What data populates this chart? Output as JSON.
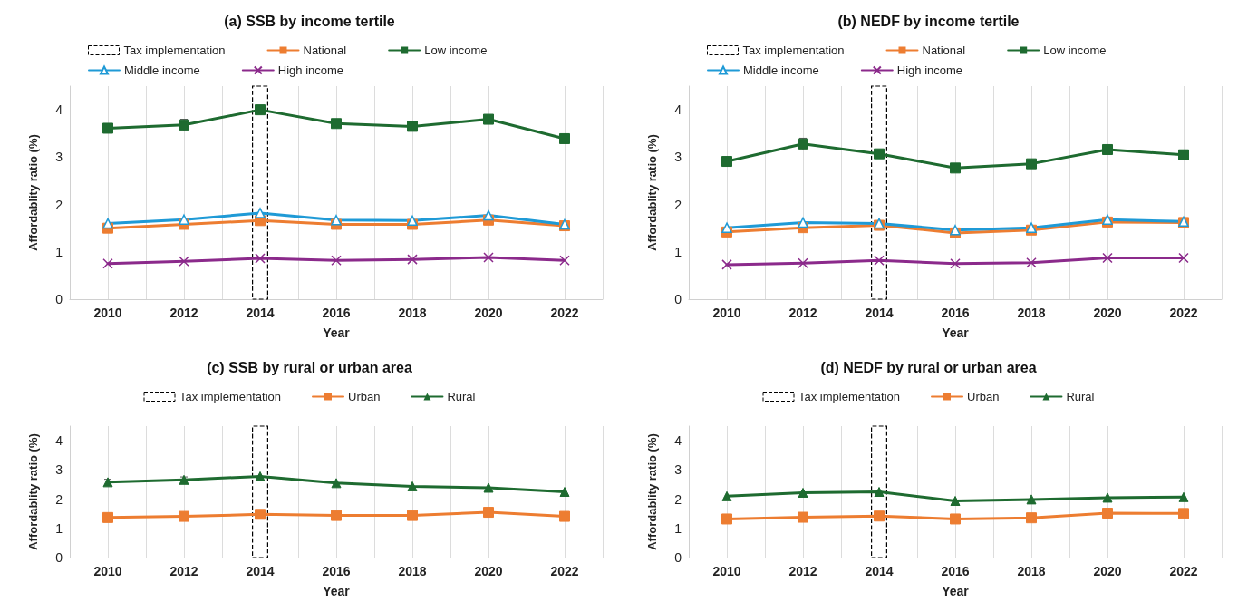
{
  "chart_data": [
    {
      "type": "line",
      "title": "(a) SSB by income tertile",
      "xlabel": "Year",
      "ylabel": "Affordablity ratio (%)",
      "x": [
        2010,
        2012,
        2014,
        2016,
        2018,
        2020,
        2022
      ],
      "series": [
        {
          "name": "National",
          "color": "#ed7d31",
          "marker": "square",
          "values": [
            1.5,
            1.58,
            1.66,
            1.58,
            1.58,
            1.67,
            1.55
          ]
        },
        {
          "name": "Low income",
          "color": "#1e6b30",
          "marker": "square",
          "values": [
            3.61,
            3.68,
            4.0,
            3.71,
            3.65,
            3.8,
            3.39
          ],
          "errors": [
            null,
            0.12,
            null,
            null,
            null,
            null,
            null
          ]
        },
        {
          "name": "Middle income",
          "color": "#1f9ad6",
          "marker": "triangle",
          "values": [
            1.6,
            1.68,
            1.82,
            1.67,
            1.66,
            1.77,
            1.58
          ]
        },
        {
          "name": "High income",
          "color": "#8b2a8b",
          "marker": "cross",
          "values": [
            0.75,
            0.8,
            0.86,
            0.82,
            0.84,
            0.88,
            0.82
          ]
        }
      ],
      "xlim": [
        2009,
        2023
      ],
      "xticks": [
        {
          "value": 2009,
          "label": null
        },
        2010,
        {
          "value": 2011,
          "label": null
        },
        2012,
        {
          "value": 2013,
          "label": null
        },
        2014,
        {
          "value": 2015,
          "label": null
        },
        2016,
        {
          "value": 2017,
          "label": null
        },
        2018,
        {
          "value": 2019,
          "label": null
        },
        2020,
        {
          "value": 2021,
          "label": null
        },
        2022,
        {
          "value": 2023,
          "label": null
        }
      ],
      "ylim": [
        0,
        4.5
      ],
      "yticks": [
        0,
        1,
        2,
        3,
        4
      ],
      "grid": "x",
      "legend": "top",
      "bands": [
        {
          "axis": "x",
          "from": 2013.8,
          "to": 2014.2,
          "label": "Tax implementation",
          "color": "#ffffff"
        }
      ]
    },
    {
      "type": "line",
      "title": "(b) NEDF by income tertile",
      "xlabel": "Year",
      "ylabel": "Affordablity ratio (%)",
      "x": [
        2010,
        2012,
        2014,
        2016,
        2018,
        2020,
        2022
      ],
      "series": [
        {
          "name": "National",
          "color": "#ed7d31",
          "marker": "square",
          "values": [
            1.42,
            1.51,
            1.56,
            1.4,
            1.46,
            1.63,
            1.62
          ]
        },
        {
          "name": "Low income",
          "color": "#1e6b30",
          "marker": "square",
          "values": [
            2.91,
            3.28,
            3.07,
            2.77,
            2.86,
            3.16,
            3.05
          ],
          "errors": [
            null,
            0.12,
            null,
            null,
            null,
            null,
            null
          ]
        },
        {
          "name": "Middle income",
          "color": "#1f9ad6",
          "marker": "triangle",
          "values": [
            1.51,
            1.62,
            1.6,
            1.46,
            1.51,
            1.68,
            1.64
          ]
        },
        {
          "name": "High income",
          "color": "#8b2a8b",
          "marker": "cross",
          "values": [
            0.73,
            0.76,
            0.82,
            0.75,
            0.77,
            0.87,
            0.87
          ]
        }
      ],
      "xlim": [
        2009,
        2023
      ],
      "xticks": [
        {
          "value": 2009,
          "label": null
        },
        2010,
        {
          "value": 2011,
          "label": null
        },
        2012,
        {
          "value": 2013,
          "label": null
        },
        2014,
        {
          "value": 2015,
          "label": null
        },
        2016,
        {
          "value": 2017,
          "label": null
        },
        2018,
        {
          "value": 2019,
          "label": null
        },
        2020,
        {
          "value": 2021,
          "label": null
        },
        2022,
        {
          "value": 2023,
          "label": null
        }
      ],
      "ylim": [
        0,
        4.5
      ],
      "yticks": [
        0,
        1,
        2,
        3,
        4
      ],
      "grid": "x",
      "legend": "top",
      "bands": [
        {
          "axis": "x",
          "from": 2013.8,
          "to": 2014.2,
          "label": "Tax implementation",
          "color": "#ffffff"
        }
      ]
    },
    {
      "type": "line",
      "title": "(c) SSB by rural or urban area",
      "xlabel": "Year",
      "ylabel": "Affordablity ratio (%)",
      "x": [
        2010,
        2012,
        2014,
        2016,
        2018,
        2020,
        2022
      ],
      "series": [
        {
          "name": "Urban",
          "color": "#ed7d31",
          "marker": "square",
          "values": [
            1.37,
            1.41,
            1.48,
            1.44,
            1.44,
            1.55,
            1.41
          ]
        },
        {
          "name": "Rural",
          "color": "#1e6b30",
          "marker": "triangle",
          "values": [
            2.58,
            2.66,
            2.78,
            2.55,
            2.44,
            2.39,
            2.25
          ],
          "errors": [
            0.1,
            0.1,
            null,
            null,
            null,
            null,
            null
          ]
        }
      ],
      "xlim": [
        2009,
        2023
      ],
      "xticks": [
        {
          "value": 2009,
          "label": null
        },
        2010,
        {
          "value": 2011,
          "label": null
        },
        2012,
        {
          "value": 2013,
          "label": null
        },
        2014,
        {
          "value": 2015,
          "label": null
        },
        2016,
        {
          "value": 2017,
          "label": null
        },
        2018,
        {
          "value": 2019,
          "label": null
        },
        2020,
        {
          "value": 2021,
          "label": null
        },
        2022,
        {
          "value": 2023,
          "label": null
        }
      ],
      "ylim": [
        0,
        4.5
      ],
      "yticks": [
        0,
        1,
        2,
        3,
        4
      ],
      "grid": "x",
      "legend": "top",
      "bands": [
        {
          "axis": "x",
          "from": 2013.8,
          "to": 2014.2,
          "label": "Tax implementation",
          "color": "#ffffff"
        }
      ]
    },
    {
      "type": "line",
      "title": "(d) NEDF by rural or urban area",
      "xlabel": "Year",
      "ylabel": "Affordablity ratio (%)",
      "x": [
        2010,
        2012,
        2014,
        2016,
        2018,
        2020,
        2022
      ],
      "series": [
        {
          "name": "Urban",
          "color": "#ed7d31",
          "marker": "square",
          "values": [
            1.32,
            1.38,
            1.42,
            1.32,
            1.36,
            1.52,
            1.51
          ]
        },
        {
          "name": "Rural",
          "color": "#1e6b30",
          "marker": "triangle",
          "values": [
            2.1,
            2.22,
            2.25,
            1.94,
            1.99,
            2.05,
            2.07
          ]
        }
      ],
      "xlim": [
        2009,
        2023
      ],
      "xticks": [
        {
          "value": 2009,
          "label": null
        },
        2010,
        {
          "value": 2011,
          "label": null
        },
        2012,
        {
          "value": 2013,
          "label": null
        },
        2014,
        {
          "value": 2015,
          "label": null
        },
        2016,
        {
          "value": 2017,
          "label": null
        },
        2018,
        {
          "value": 2019,
          "label": null
        },
        2020,
        {
          "value": 2021,
          "label": null
        },
        2022,
        {
          "value": 2023,
          "label": null
        }
      ],
      "ylim": [
        0,
        4.5
      ],
      "yticks": [
        0,
        1,
        2,
        3,
        4
      ],
      "grid": "x",
      "legend": "top",
      "bands": [
        {
          "axis": "x",
          "from": 2013.8,
          "to": 2014.2,
          "label": "Tax implementation",
          "color": "#ffffff"
        }
      ]
    }
  ]
}
